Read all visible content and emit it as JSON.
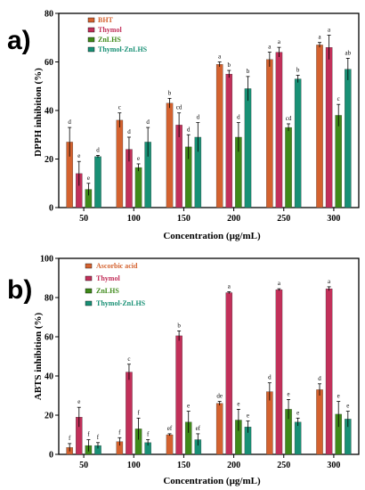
{
  "panels": [
    {
      "panel_label": "a)",
      "colors": [
        "#d4622f",
        "#c2305a",
        "#3f8a1a",
        "#189075"
      ]
    },
    {
      "panel_label": "b)",
      "colors": [
        "#d4622f",
        "#c2305a",
        "#3f8a1a",
        "#189075"
      ]
    }
  ],
  "chart_data": [
    {
      "type": "bar",
      "title": "",
      "xlabel": "Concentration (µg/mL)",
      "ylabel": "DPPH inhibition (%)",
      "ylim": [
        0,
        80
      ],
      "yticks": [
        0,
        20,
        40,
        60,
        80
      ],
      "categories": [
        "50",
        "100",
        "150",
        "200",
        "250",
        "300"
      ],
      "legend_position": "top-left",
      "series": [
        {
          "name": "BHT",
          "values": [
            27,
            36,
            43,
            59,
            61,
            67
          ],
          "errors": [
            6,
            3,
            2,
            1,
            3,
            1
          ],
          "letters": [
            "d",
            "c",
            "b",
            "a",
            "a",
            "a"
          ]
        },
        {
          "name": "Thymol",
          "values": [
            14,
            24,
            34,
            55,
            64,
            66
          ],
          "errors": [
            5,
            5,
            5,
            1.5,
            2,
            5
          ],
          "letters": [
            "e",
            "d",
            "cd",
            "b",
            "a",
            "a"
          ]
        },
        {
          "name": "ZnLHS",
          "values": [
            7.5,
            16.5,
            25,
            29,
            33,
            38
          ],
          "errors": [
            2.5,
            1.5,
            5,
            6,
            1.5,
            4.5
          ],
          "letters": [
            "e",
            "e",
            "d",
            "d",
            "cd",
            "c"
          ]
        },
        {
          "name": "Thymol-ZnLHS",
          "values": [
            21,
            27,
            29,
            49,
            53,
            57
          ],
          "errors": [
            0.5,
            6,
            6,
            5,
            1.5,
            4.5
          ],
          "letters": [
            "d",
            "d",
            "d",
            "b",
            "b",
            "ab"
          ]
        }
      ]
    },
    {
      "type": "bar",
      "title": "",
      "xlabel": "Concentration (µg/mL)",
      "ylabel": "ABTS inhibition (%)",
      "ylim": [
        0,
        100
      ],
      "yticks": [
        0,
        20,
        40,
        60,
        80,
        100
      ],
      "categories": [
        "50",
        "100",
        "150",
        "200",
        "250",
        "300"
      ],
      "legend_position": "top-left",
      "series": [
        {
          "name": "Ascorbic acid",
          "values": [
            3.5,
            6.5,
            10,
            26,
            32,
            33
          ],
          "errors": [
            2,
            2,
            0.5,
            1,
            4.5,
            3
          ],
          "letters": [
            "f",
            "f",
            "ef",
            "de",
            "d",
            "d"
          ]
        },
        {
          "name": "Thymol",
          "values": [
            19,
            42,
            60.5,
            82.5,
            84,
            84.5
          ],
          "errors": [
            5,
            4,
            2.5,
            0.5,
            0.5,
            1
          ],
          "letters": [
            "e",
            "c",
            "b",
            "a",
            "a",
            "a"
          ]
        },
        {
          "name": "ZnLHS",
          "values": [
            4.5,
            13,
            16.5,
            17.5,
            23,
            20.5
          ],
          "errors": [
            3,
            5.5,
            5.5,
            5.5,
            5,
            6.5
          ],
          "letters": [
            "f",
            "f",
            "e",
            "e",
            "e",
            "e"
          ]
        },
        {
          "name": "Thymol-ZnLHS",
          "values": [
            4.5,
            6,
            7.5,
            14,
            16.5,
            18
          ],
          "errors": [
            1.5,
            1.5,
            3,
            3,
            2,
            4
          ],
          "letters": [
            "f",
            "f",
            "ef",
            "e",
            "e",
            "e"
          ]
        }
      ]
    }
  ]
}
